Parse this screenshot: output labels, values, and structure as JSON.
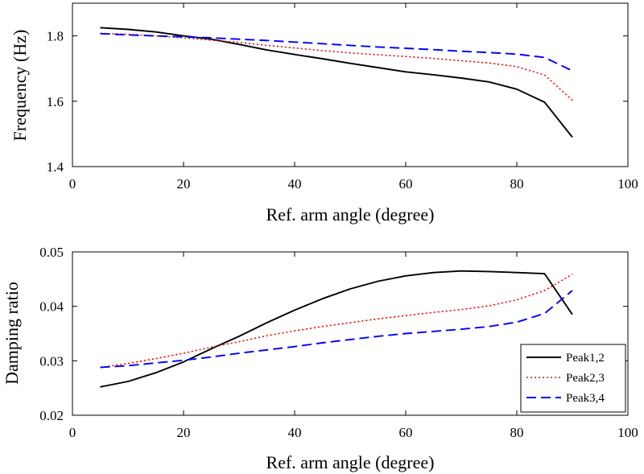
{
  "chart_data": [
    {
      "type": "line",
      "xlabel": "Ref. arm angle (degree)",
      "ylabel": "Frequency (Hz)",
      "xlim": [
        0,
        100
      ],
      "ylim": [
        1.4,
        1.9
      ],
      "xticks": [
        0,
        20,
        40,
        60,
        80,
        100
      ],
      "yticks": [
        1.4,
        1.6,
        1.8
      ],
      "ytick_labels": [
        "1.4",
        "1.6",
        "1.8"
      ],
      "series": [
        {
          "name": "Peak1,2",
          "color": "#000000",
          "dash": "solid",
          "x": [
            5,
            10,
            15,
            20,
            25,
            30,
            35,
            40,
            45,
            50,
            55,
            60,
            65,
            70,
            75,
            80,
            85,
            90
          ],
          "y": [
            1.825,
            1.82,
            1.812,
            1.8,
            1.79,
            1.774,
            1.757,
            1.743,
            1.73,
            1.716,
            1.703,
            1.69,
            1.681,
            1.671,
            1.659,
            1.637,
            1.597,
            1.49
          ]
        },
        {
          "name": "Peak2,3",
          "color": "#ff0000",
          "dash": "dotted",
          "x": [
            5,
            10,
            15,
            20,
            25,
            30,
            35,
            40,
            45,
            50,
            55,
            60,
            65,
            70,
            75,
            80,
            85,
            90
          ],
          "y": [
            1.808,
            1.805,
            1.8,
            1.794,
            1.787,
            1.78,
            1.771,
            1.763,
            1.755,
            1.748,
            1.742,
            1.737,
            1.731,
            1.724,
            1.717,
            1.706,
            1.68,
            1.603
          ]
        },
        {
          "name": "Peak3,4",
          "color": "#0000ff",
          "dash": "dashed",
          "x": [
            5,
            10,
            15,
            20,
            25,
            30,
            35,
            40,
            45,
            50,
            55,
            60,
            65,
            70,
            75,
            80,
            85,
            90
          ],
          "y": [
            1.807,
            1.803,
            1.8,
            1.797,
            1.794,
            1.79,
            1.786,
            1.781,
            1.776,
            1.771,
            1.766,
            1.762,
            1.758,
            1.753,
            1.749,
            1.744,
            1.734,
            1.693
          ]
        }
      ]
    },
    {
      "type": "line",
      "xlabel": "Ref. arm angle (degree)",
      "ylabel": "Damping ratio",
      "xlim": [
        0,
        100
      ],
      "ylim": [
        0.02,
        0.05
      ],
      "xticks": [
        0,
        20,
        40,
        60,
        80,
        100
      ],
      "yticks": [
        0.02,
        0.03,
        0.04,
        0.05
      ],
      "ytick_labels": [
        "0.02",
        "0.03",
        "0.04",
        "0.05"
      ],
      "legend_position": "bottom-right",
      "series": [
        {
          "name": "Peak1,2",
          "color": "#000000",
          "dash": "solid",
          "x": [
            5,
            10,
            15,
            20,
            25,
            30,
            35,
            40,
            45,
            50,
            55,
            60,
            65,
            70,
            75,
            80,
            85,
            90
          ],
          "y": [
            0.0252,
            0.0262,
            0.0278,
            0.0298,
            0.0322,
            0.0345,
            0.037,
            0.0393,
            0.0414,
            0.0432,
            0.0446,
            0.0456,
            0.0462,
            0.0465,
            0.0464,
            0.0462,
            0.046,
            0.0385
          ]
        },
        {
          "name": "Peak2,3",
          "color": "#ff0000",
          "dash": "dotted",
          "x": [
            5,
            10,
            15,
            20,
            25,
            30,
            35,
            40,
            45,
            50,
            55,
            60,
            65,
            70,
            75,
            80,
            85,
            90
          ],
          "y": [
            0.0288,
            0.0295,
            0.0304,
            0.0314,
            0.0325,
            0.0335,
            0.0346,
            0.0355,
            0.0363,
            0.037,
            0.0377,
            0.0383,
            0.0389,
            0.0394,
            0.0401,
            0.0412,
            0.0429,
            0.0459
          ]
        },
        {
          "name": "Peak3,4",
          "color": "#0000ff",
          "dash": "dashed",
          "x": [
            5,
            10,
            15,
            20,
            25,
            30,
            35,
            40,
            45,
            50,
            55,
            60,
            65,
            70,
            75,
            80,
            85,
            90
          ],
          "y": [
            0.0288,
            0.0291,
            0.0296,
            0.0301,
            0.0307,
            0.0314,
            0.032,
            0.0326,
            0.0333,
            0.0339,
            0.0345,
            0.035,
            0.0354,
            0.0358,
            0.0363,
            0.0371,
            0.0387,
            0.0429
          ]
        }
      ]
    }
  ]
}
